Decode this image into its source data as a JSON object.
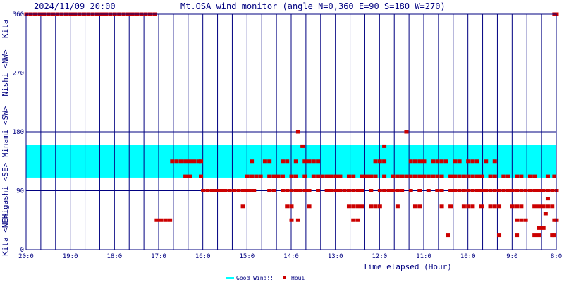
{
  "header": {
    "datetime": "2024/11/09 20:00",
    "title": "Mt.OSA wind monitor (angle N=0,360 E=90 S=180 W=270)"
  },
  "chart_data": {
    "type": "scatter",
    "title": "Mt.OSA wind monitor (angle N=0,360 E=90 S=180 W=270)",
    "xlabel": "Time elapsed (Hour)",
    "ylabel": "",
    "xlim": [
      0,
      12
    ],
    "ylim": [
      0,
      360
    ],
    "x_ticks": [
      {
        "value": 0,
        "label": "20:0"
      },
      {
        "value": 1,
        "label": "19:0"
      },
      {
        "value": 2,
        "label": "18:0"
      },
      {
        "value": 3,
        "label": "17:0"
      },
      {
        "value": 4,
        "label": "16:0"
      },
      {
        "value": 5,
        "label": "15:0"
      },
      {
        "value": 6,
        "label": "14:0"
      },
      {
        "value": 7,
        "label": "13:0"
      },
      {
        "value": 8,
        "label": "12:0"
      },
      {
        "value": 9,
        "label": "11:0"
      },
      {
        "value": 10,
        "label": "10:0"
      },
      {
        "value": 11,
        "label": "9:0"
      },
      {
        "value": 12,
        "label": "8:0"
      }
    ],
    "y_ticks": [
      {
        "value": 0,
        "label": "0"
      },
      {
        "value": 90,
        "label": "90"
      },
      {
        "value": 180,
        "label": "180"
      },
      {
        "value": 270,
        "label": "270"
      },
      {
        "value": 360,
        "label": "360"
      }
    ],
    "direction_labels": [
      {
        "range": [
          0,
          45
        ],
        "label": "Kita <NE>"
      },
      {
        "range": [
          45,
          135
        ],
        "label": "Higashi <SE>"
      },
      {
        "range": [
          135,
          225
        ],
        "label": "Minami <SW>"
      },
      {
        "range": [
          225,
          315
        ],
        "label": "Nishi <NW>"
      },
      {
        "range": [
          315,
          360
        ],
        "label": "Kita"
      }
    ],
    "good_wind_band": {
      "name": "Good Wind!!",
      "from": 110,
      "to": 160,
      "color": "#00ffff"
    },
    "houi_series": {
      "name": "Houi",
      "color": "#cc0000",
      "points": [
        [
          0.0,
          360
        ],
        [
          0.1,
          360
        ],
        [
          0.2,
          360
        ],
        [
          0.3,
          360
        ],
        [
          0.4,
          360
        ],
        [
          0.5,
          360
        ],
        [
          0.6,
          360
        ],
        [
          0.7,
          360
        ],
        [
          0.8,
          360
        ],
        [
          0.9,
          360
        ],
        [
          1.0,
          360
        ],
        [
          1.1,
          360
        ],
        [
          1.2,
          360
        ],
        [
          1.3,
          360
        ],
        [
          1.4,
          360
        ],
        [
          1.5,
          360
        ],
        [
          1.6,
          360
        ],
        [
          1.7,
          360
        ],
        [
          1.8,
          360
        ],
        [
          1.9,
          360
        ],
        [
          2.0,
          360
        ],
        [
          2.1,
          360
        ],
        [
          2.2,
          360
        ],
        [
          2.3,
          360
        ],
        [
          2.4,
          360
        ],
        [
          2.5,
          360
        ],
        [
          2.6,
          360
        ],
        [
          2.7,
          360
        ],
        [
          2.8,
          360
        ],
        [
          2.9,
          360
        ],
        [
          2.95,
          45
        ],
        [
          3.05,
          45
        ],
        [
          3.15,
          45
        ],
        [
          3.25,
          45
        ],
        [
          3.3,
          135
        ],
        [
          3.4,
          135
        ],
        [
          3.5,
          135
        ],
        [
          3.6,
          135
        ],
        [
          3.7,
          135
        ],
        [
          3.8,
          135
        ],
        [
          3.9,
          135
        ],
        [
          3.95,
          135
        ],
        [
          3.6,
          112
        ],
        [
          3.7,
          112
        ],
        [
          3.95,
          112
        ],
        [
          4.0,
          90
        ],
        [
          4.1,
          90
        ],
        [
          4.2,
          90
        ],
        [
          4.3,
          90
        ],
        [
          4.4,
          90
        ],
        [
          4.5,
          90
        ],
        [
          4.6,
          90
        ],
        [
          4.7,
          90
        ],
        [
          4.8,
          90
        ],
        [
          4.9,
          90
        ],
        [
          5.0,
          90
        ],
        [
          4.9,
          66
        ],
        [
          5.0,
          112
        ],
        [
          5.1,
          112
        ],
        [
          5.2,
          112
        ],
        [
          5.3,
          112
        ],
        [
          5.5,
          112
        ],
        [
          5.6,
          112
        ],
        [
          5.7,
          112
        ],
        [
          5.8,
          112
        ],
        [
          6.0,
          112
        ],
        [
          6.1,
          112
        ],
        [
          6.3,
          112
        ],
        [
          6.5,
          112
        ],
        [
          6.6,
          112
        ],
        [
          6.7,
          112
        ],
        [
          6.8,
          112
        ],
        [
          6.9,
          112
        ],
        [
          7.0,
          112
        ],
        [
          7.1,
          112
        ],
        [
          7.3,
          112
        ],
        [
          7.4,
          112
        ],
        [
          7.6,
          112
        ],
        [
          7.7,
          112
        ],
        [
          7.8,
          112
        ],
        [
          7.9,
          112
        ],
        [
          8.1,
          112
        ],
        [
          8.3,
          112
        ],
        [
          8.4,
          112
        ],
        [
          8.5,
          112
        ],
        [
          8.6,
          112
        ],
        [
          8.7,
          112
        ],
        [
          8.8,
          112
        ],
        [
          8.9,
          112
        ],
        [
          9.0,
          112
        ],
        [
          9.1,
          112
        ],
        [
          9.2,
          112
        ],
        [
          9.3,
          112
        ],
        [
          9.4,
          112
        ],
        [
          9.6,
          112
        ],
        [
          9.7,
          112
        ],
        [
          9.8,
          112
        ],
        [
          9.9,
          112
        ],
        [
          10.0,
          112
        ],
        [
          10.1,
          112
        ],
        [
          10.2,
          112
        ],
        [
          10.3,
          112
        ],
        [
          10.5,
          112
        ],
        [
          10.6,
          112
        ],
        [
          10.8,
          112
        ],
        [
          10.9,
          112
        ],
        [
          11.1,
          112
        ],
        [
          11.2,
          112
        ],
        [
          11.4,
          112
        ],
        [
          11.5,
          112
        ],
        [
          11.8,
          112
        ],
        [
          11.95,
          112
        ],
        [
          5.05,
          90
        ],
        [
          5.15,
          90
        ],
        [
          5.5,
          90
        ],
        [
          5.6,
          90
        ],
        [
          5.8,
          90
        ],
        [
          5.9,
          90
        ],
        [
          6.0,
          90
        ],
        [
          6.1,
          90
        ],
        [
          6.2,
          90
        ],
        [
          6.3,
          90
        ],
        [
          6.4,
          90
        ],
        [
          6.6,
          90
        ],
        [
          6.8,
          90
        ],
        [
          6.9,
          90
        ],
        [
          7.0,
          90
        ],
        [
          7.1,
          90
        ],
        [
          7.2,
          90
        ],
        [
          7.3,
          90
        ],
        [
          7.4,
          90
        ],
        [
          7.5,
          90
        ],
        [
          7.6,
          90
        ],
        [
          7.8,
          90
        ],
        [
          8.0,
          90
        ],
        [
          8.1,
          90
        ],
        [
          8.2,
          90
        ],
        [
          8.3,
          90
        ],
        [
          8.4,
          90
        ],
        [
          8.5,
          90
        ],
        [
          8.7,
          90
        ],
        [
          8.9,
          90
        ],
        [
          9.1,
          90
        ],
        [
          9.3,
          90
        ],
        [
          9.4,
          90
        ],
        [
          9.6,
          90
        ],
        [
          9.7,
          90
        ],
        [
          9.8,
          90
        ],
        [
          9.9,
          90
        ],
        [
          10.0,
          90
        ],
        [
          10.1,
          90
        ],
        [
          10.2,
          90
        ],
        [
          10.3,
          90
        ],
        [
          10.4,
          90
        ],
        [
          10.5,
          90
        ],
        [
          10.6,
          90
        ],
        [
          10.7,
          90
        ],
        [
          10.8,
          90
        ],
        [
          10.9,
          90
        ],
        [
          11.0,
          90
        ],
        [
          11.1,
          90
        ],
        [
          11.2,
          90
        ],
        [
          11.3,
          90
        ],
        [
          11.4,
          90
        ],
        [
          11.5,
          90
        ],
        [
          11.6,
          90
        ],
        [
          11.7,
          90
        ],
        [
          11.8,
          90
        ],
        [
          11.9,
          90
        ],
        [
          12.0,
          90
        ],
        [
          5.1,
          135
        ],
        [
          5.4,
          135
        ],
        [
          5.5,
          135
        ],
        [
          5.8,
          135
        ],
        [
          5.9,
          135
        ],
        [
          6.1,
          135
        ],
        [
          6.3,
          135
        ],
        [
          6.4,
          135
        ],
        [
          6.5,
          135
        ],
        [
          6.6,
          135
        ],
        [
          7.9,
          135
        ],
        [
          8.0,
          135
        ],
        [
          8.1,
          135
        ],
        [
          8.7,
          135
        ],
        [
          8.8,
          135
        ],
        [
          8.9,
          135
        ],
        [
          9.0,
          135
        ],
        [
          9.2,
          135
        ],
        [
          9.3,
          135
        ],
        [
          9.4,
          135
        ],
        [
          9.5,
          135
        ],
        [
          9.7,
          135
        ],
        [
          9.8,
          135
        ],
        [
          10.0,
          135
        ],
        [
          10.1,
          135
        ],
        [
          10.2,
          135
        ],
        [
          10.4,
          135
        ],
        [
          10.6,
          135
        ],
        [
          6.15,
          180
        ],
        [
          6.25,
          158
        ],
        [
          8.1,
          158
        ],
        [
          8.6,
          180
        ],
        [
          5.9,
          66
        ],
        [
          6.0,
          66
        ],
        [
          6.0,
          45
        ],
        [
          6.15,
          45
        ],
        [
          6.4,
          66
        ],
        [
          7.3,
          66
        ],
        [
          7.4,
          66
        ],
        [
          7.5,
          66
        ],
        [
          7.6,
          66
        ],
        [
          7.4,
          45
        ],
        [
          7.5,
          45
        ],
        [
          7.8,
          66
        ],
        [
          7.9,
          66
        ],
        [
          8.0,
          66
        ],
        [
          8.4,
          66
        ],
        [
          8.8,
          66
        ],
        [
          8.9,
          66
        ],
        [
          9.4,
          66
        ],
        [
          9.6,
          66
        ],
        [
          9.9,
          66
        ],
        [
          10.0,
          66
        ],
        [
          10.1,
          66
        ],
        [
          10.3,
          66
        ],
        [
          10.5,
          66
        ],
        [
          10.6,
          66
        ],
        [
          10.7,
          66
        ],
        [
          11.0,
          66
        ],
        [
          11.1,
          66
        ],
        [
          11.2,
          66
        ],
        [
          11.5,
          66
        ],
        [
          11.6,
          66
        ],
        [
          11.7,
          66
        ],
        [
          11.8,
          66
        ],
        [
          11.9,
          66
        ],
        [
          11.1,
          45
        ],
        [
          11.2,
          45
        ],
        [
          11.3,
          45
        ],
        [
          11.95,
          45
        ],
        [
          12.0,
          45
        ],
        [
          9.55,
          22
        ],
        [
          10.7,
          22
        ],
        [
          11.1,
          22
        ],
        [
          11.5,
          22
        ],
        [
          11.6,
          22
        ],
        [
          11.9,
          22
        ],
        [
          11.95,
          22
        ],
        [
          11.6,
          33
        ],
        [
          11.7,
          33
        ],
        [
          11.8,
          78
        ],
        [
          11.75,
          55
        ],
        [
          11.95,
          360
        ],
        [
          12.0,
          360
        ]
      ]
    },
    "legend": {
      "placement": "bottom-center",
      "entries": [
        {
          "label": "Good Wind!!",
          "color": "#00ffff"
        },
        {
          "label": "Houi",
          "color": "#cc0000"
        }
      ]
    },
    "grid": true
  }
}
